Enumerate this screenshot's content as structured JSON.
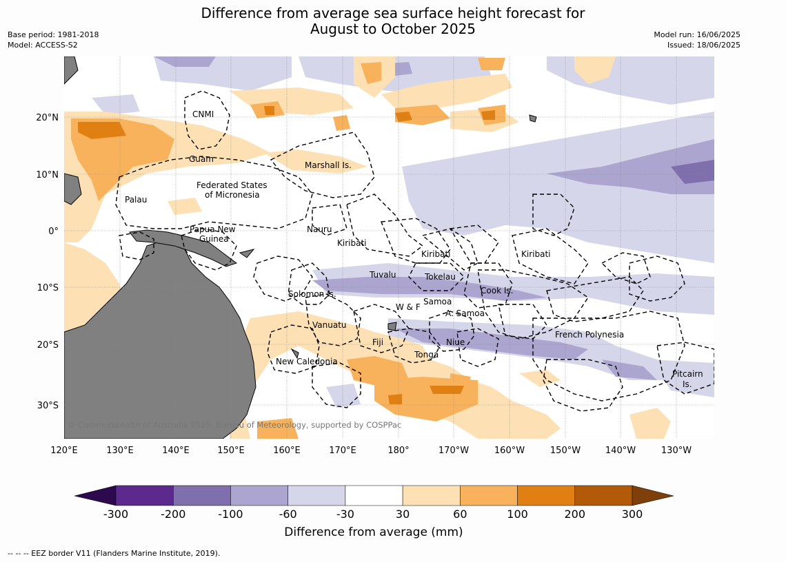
{
  "title_line1": "Difference from average sea surface height forecast for",
  "title_line2": "August to October 2025",
  "meta_left": [
    "Base period: 1981-2018",
    "Model: ACCESS-S2"
  ],
  "meta_right": [
    "Model run: 16/06/2025",
    "Issued: 18/06/2025"
  ],
  "lon_ticks": [
    "120°E",
    "130°E",
    "140°E",
    "150°E",
    "160°E",
    "170°E",
    "180°",
    "170°W",
    "160°W",
    "150°W",
    "140°W",
    "130°W"
  ],
  "lat_ticks": [
    "20°N",
    "10°N",
    "0°",
    "10°S",
    "20°S",
    "30°S"
  ],
  "places": [
    {
      "id": "cnmi",
      "text": "CNMI"
    },
    {
      "id": "guam",
      "text": "Guam"
    },
    {
      "id": "marshall",
      "text": "Marshall Is."
    },
    {
      "id": "fsm1",
      "text": "Federated States"
    },
    {
      "id": "fsm2",
      "text": "of Micronesia"
    },
    {
      "id": "palau",
      "text": "Palau"
    },
    {
      "id": "png1",
      "text": "Papua New"
    },
    {
      "id": "png2",
      "text": "Guinea"
    },
    {
      "id": "nauru",
      "text": "Nauru"
    },
    {
      "id": "kiribati1",
      "text": "Kiribati"
    },
    {
      "id": "kiribati2",
      "text": "Kiribati"
    },
    {
      "id": "kiribati3",
      "text": "Kiribati"
    },
    {
      "id": "tuvalu",
      "text": "Tuvalu"
    },
    {
      "id": "tokelau",
      "text": "Tokelau"
    },
    {
      "id": "cook",
      "text": "Cook Is."
    },
    {
      "id": "solomon",
      "text": "Solomon Is."
    },
    {
      "id": "wf",
      "text": "W & F"
    },
    {
      "id": "samoa",
      "text": "Samoa"
    },
    {
      "id": "asamoa",
      "text": "A. Samoa"
    },
    {
      "id": "vanuatu",
      "text": "Vanuatu"
    },
    {
      "id": "fiji",
      "text": "Fiji"
    },
    {
      "id": "niue",
      "text": "Niue"
    },
    {
      "id": "tonga",
      "text": "Tonga"
    },
    {
      "id": "frpoly",
      "text": "French Polynesia"
    },
    {
      "id": "newcal",
      "text": "New Caledonia"
    },
    {
      "id": "pitcairn1",
      "text": "Pitcairn"
    },
    {
      "id": "pitcairn2",
      "text": "Is."
    }
  ],
  "copyright": "© Commonwealth of Australia 2025, Bureau of Meteorology, supported by COSPPac",
  "colorbar": {
    "labels": [
      "-300",
      "-200",
      "-100",
      "-60",
      "-30",
      "30",
      "60",
      "100",
      "200",
      "300"
    ],
    "colors": [
      "#5b2a8c",
      "#7f6fad",
      "#aca5d0",
      "#d6d6ea",
      "#ffffff",
      "#fde0b4",
      "#f9b25c",
      "#e07f12",
      "#b35a08"
    ],
    "under_color": "#2d0a4e",
    "over_color": "#7f3f0a",
    "title": "Difference from average (mm)"
  },
  "footer": "--  --  -- EEZ border V11 (Flanders Marine Institute, 2019).",
  "colors": {
    "land": "#808080",
    "eez": "#000000",
    "ocean_neutral": "#ffffff"
  }
}
